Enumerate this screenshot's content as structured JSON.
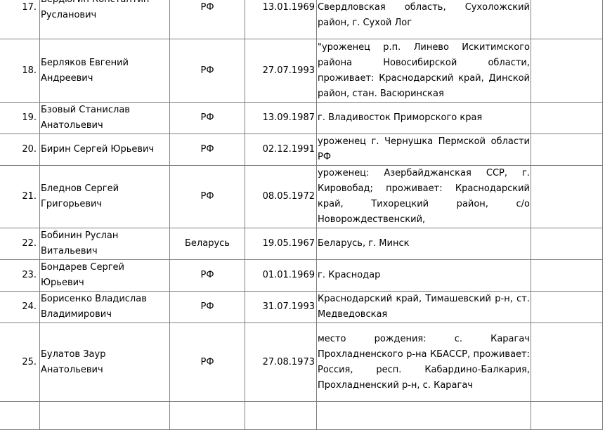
{
  "rows": [
    {
      "num": "17.",
      "name": "Бердюгин Константин Русланович",
      "country": "РФ",
      "date": "13.01.1969",
      "address": "уроженец г. Новосибирск, проживает: Свердловская область, Сухоложский район, г. Сухой Лог",
      "note": ""
    },
    {
      "num": "18.",
      "name": "Берляков Евгений Андреевич",
      "country": "РФ",
      "date": "27.07.1993",
      "address": "\"уроженец р.п. Линево Искитимского района Новосибирской области, проживает: Краснодарский край, Динской район, стан. Васюринская",
      "note": ""
    },
    {
      "num": "19.",
      "name": "Бзовый Станислав Анатольевич",
      "country": "РФ",
      "date": "13.09.1987",
      "address": "г. Владивосток Приморского края",
      "note": ""
    },
    {
      "num": "20.",
      "name": "Бирин Сергей Юрьевич",
      "country": "РФ",
      "date": "02.12.1991",
      "address": "уроженец г. Чернушка Пермской области РФ",
      "note": ""
    },
    {
      "num": "21.",
      "name": "Бледнов Сергей Григорьевич",
      "country": "РФ",
      "date": "08.05.1972",
      "address": "уроженец: Азербайджанская ССР, г. Кировобад; проживает: Краснодарский край, Тихорецкий район, с/о Новорождественский,",
      "note": ""
    },
    {
      "num": "22.",
      "name": "Бобинин Руслан Витальевич",
      "country": "Беларусь",
      "date": "19.05.1967",
      "address": "Беларусь, г. Минск",
      "note": ""
    },
    {
      "num": "23.",
      "name": "Бондарев Сергей Юрьевич",
      "country": "РФ",
      "date": "01.01.1969",
      "address": "г. Краснодар",
      "note": ""
    },
    {
      "num": "24.",
      "name": "Борисенко Владислав Владимирович",
      "country": "РФ",
      "date": "31.07.1993",
      "address": "Краснодарский край, Тимашевский р-н, ст. Медведовская",
      "note": ""
    },
    {
      "num": "25.",
      "name": "Булатов Заур Анатольевич",
      "country": "РФ",
      "date": "27.08.1973",
      "address": "место рождения: с. Карагач Прохладненского р-на КБАССР, проживает: Россия, респ. Кабардино-Балкария, Прохладненский р-н, с. Карагач",
      "note": ""
    },
    {
      "num": "",
      "name": "",
      "country": "",
      "date": "",
      "address": "",
      "note": ""
    }
  ]
}
